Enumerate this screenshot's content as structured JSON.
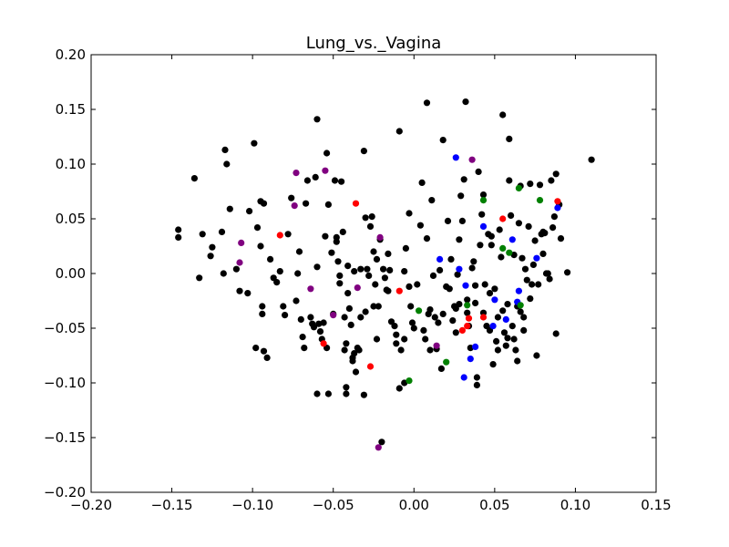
{
  "chart_data": {
    "type": "scatter",
    "title": "Lung_vs._Vagina",
    "xlabel": "",
    "ylabel": "",
    "xlim": [
      -0.2,
      0.15
    ],
    "ylim": [
      -0.2,
      0.2
    ],
    "xticks": [
      -0.2,
      -0.15,
      -0.1,
      -0.05,
      0.0,
      0.05,
      0.1,
      0.15
    ],
    "xtick_labels": [
      "−0.20",
      "−0.15",
      "−0.10",
      "−0.05",
      "0.00",
      "0.05",
      "0.10",
      "0.15"
    ],
    "yticks": [
      -0.2,
      -0.15,
      -0.1,
      -0.05,
      0.0,
      0.05,
      0.1,
      0.15,
      0.2
    ],
    "ytick_labels": [
      "−0.20",
      "−0.15",
      "−0.10",
      "−0.05",
      "0.00",
      "0.05",
      "0.10",
      "0.15",
      "0.20"
    ],
    "grid": false,
    "legend": "none",
    "series": [
      {
        "color": "#000000",
        "points": [
          [
            -0.146,
            0.04
          ],
          [
            -0.146,
            0.033
          ],
          [
            -0.136,
            0.087
          ],
          [
            -0.133,
            -0.004
          ],
          [
            -0.131,
            0.036
          ],
          [
            -0.126,
            0.016
          ],
          [
            -0.125,
            0.024
          ],
          [
            -0.119,
            0.038
          ],
          [
            -0.118,
            0.0
          ],
          [
            -0.117,
            0.113
          ],
          [
            -0.116,
            0.1
          ],
          [
            -0.114,
            0.059
          ],
          [
            -0.11,
            0.004
          ],
          [
            -0.108,
            -0.016
          ],
          [
            -0.103,
            -0.018
          ],
          [
            -0.102,
            0.057
          ],
          [
            -0.099,
            0.119
          ],
          [
            -0.098,
            -0.068
          ],
          [
            -0.097,
            0.042
          ],
          [
            -0.095,
            0.066
          ],
          [
            -0.095,
            0.025
          ],
          [
            -0.094,
            -0.037
          ],
          [
            -0.094,
            -0.03
          ],
          [
            -0.093,
            0.064
          ],
          [
            -0.093,
            -0.071
          ],
          [
            -0.091,
            -0.077
          ],
          [
            -0.089,
            0.013
          ],
          [
            -0.087,
            -0.004
          ],
          [
            -0.085,
            -0.008
          ],
          [
            -0.083,
            0.002
          ],
          [
            -0.081,
            -0.03
          ],
          [
            -0.08,
            -0.038
          ],
          [
            -0.078,
            0.036
          ],
          [
            -0.076,
            0.069
          ],
          [
            -0.073,
            -0.025
          ],
          [
            -0.072,
            0.0
          ],
          [
            -0.071,
            0.02
          ],
          [
            -0.07,
            -0.042
          ],
          [
            -0.069,
            -0.058
          ],
          [
            -0.068,
            -0.068
          ],
          [
            -0.067,
            0.064
          ],
          [
            -0.066,
            0.085
          ],
          [
            -0.064,
            -0.04
          ],
          [
            -0.063,
            -0.046
          ],
          [
            -0.062,
            -0.049
          ],
          [
            -0.061,
            0.088
          ],
          [
            -0.06,
            0.141
          ],
          [
            -0.06,
            0.006
          ],
          [
            -0.06,
            -0.11
          ],
          [
            -0.059,
            -0.046
          ],
          [
            -0.058,
            -0.053
          ],
          [
            -0.057,
            -0.06
          ],
          [
            -0.056,
            -0.045
          ],
          [
            -0.055,
            0.034
          ],
          [
            -0.054,
            0.11
          ],
          [
            -0.054,
            -0.068
          ],
          [
            -0.053,
            0.063
          ],
          [
            -0.053,
            -0.11
          ],
          [
            -0.051,
            0.019
          ],
          [
            -0.05,
            -0.037
          ],
          [
            -0.049,
            0.085
          ],
          [
            -0.048,
            0.033
          ],
          [
            -0.048,
            0.029
          ],
          [
            -0.047,
            0.011
          ],
          [
            -0.046,
            -0.002
          ],
          [
            -0.046,
            -0.009
          ],
          [
            -0.045,
            0.084
          ],
          [
            -0.044,
            0.038
          ],
          [
            -0.043,
            -0.04
          ],
          [
            -0.043,
            -0.07
          ],
          [
            -0.042,
            -0.064
          ],
          [
            -0.042,
            -0.104
          ],
          [
            -0.042,
            -0.11
          ],
          [
            -0.041,
            0.007
          ],
          [
            -0.041,
            -0.018
          ],
          [
            -0.04,
            -0.032
          ],
          [
            -0.039,
            -0.047
          ],
          [
            -0.038,
            -0.077
          ],
          [
            -0.038,
            -0.08
          ],
          [
            -0.037,
            0.002
          ],
          [
            -0.037,
            -0.073
          ],
          [
            -0.036,
            -0.09
          ],
          [
            -0.035,
            -0.068
          ],
          [
            -0.034,
            -0.07
          ],
          [
            -0.033,
            -0.04
          ],
          [
            -0.033,
            0.004
          ],
          [
            -0.031,
            -0.111
          ],
          [
            -0.031,
            0.112
          ],
          [
            -0.03,
            0.051
          ],
          [
            -0.03,
            -0.035
          ],
          [
            -0.029,
            0.004
          ],
          [
            -0.028,
            -0.002
          ],
          [
            -0.027,
            0.043
          ],
          [
            -0.026,
            0.052
          ],
          [
            -0.025,
            -0.03
          ],
          [
            -0.025,
            0.02
          ],
          [
            -0.024,
            -0.01
          ],
          [
            -0.023,
            0.013
          ],
          [
            -0.023,
            -0.06
          ],
          [
            -0.022,
            -0.03
          ],
          [
            -0.021,
            0.031
          ],
          [
            -0.02,
            -0.154
          ],
          [
            -0.019,
            0.004
          ],
          [
            -0.018,
            -0.004
          ],
          [
            -0.017,
            -0.015
          ],
          [
            -0.016,
            -0.016
          ],
          [
            -0.016,
            0.018
          ],
          [
            -0.015,
            0.003
          ],
          [
            -0.014,
            -0.044
          ],
          [
            -0.012,
            -0.048
          ],
          [
            -0.011,
            -0.056
          ],
          [
            -0.011,
            -0.064
          ],
          [
            -0.009,
            0.13
          ],
          [
            -0.009,
            -0.105
          ],
          [
            -0.008,
            -0.07
          ],
          [
            -0.006,
            -0.06
          ],
          [
            -0.006,
            -0.1
          ],
          [
            -0.006,
            0.002
          ],
          [
            -0.005,
            0.023
          ],
          [
            -0.003,
            -0.012
          ],
          [
            -0.003,
            0.055
          ],
          [
            -0.002,
            -0.03
          ],
          [
            -0.001,
            -0.045
          ],
          [
            0.0,
            -0.05
          ],
          [
            0.002,
            -0.01
          ],
          [
            0.004,
            0.044
          ],
          [
            0.005,
            0.083
          ],
          [
            0.006,
            -0.052
          ],
          [
            0.007,
            -0.06
          ],
          [
            0.008,
            0.156
          ],
          [
            0.008,
            0.032
          ],
          [
            0.009,
            -0.037
          ],
          [
            0.01,
            -0.07
          ],
          [
            0.011,
            0.067
          ],
          [
            0.012,
            -0.002
          ],
          [
            0.013,
            -0.04
          ],
          [
            0.014,
            -0.069
          ],
          [
            0.016,
            0.003
          ],
          [
            0.017,
            -0.087
          ],
          [
            0.018,
            0.122
          ],
          [
            0.018,
            -0.037
          ],
          [
            0.02,
            -0.012
          ],
          [
            0.021,
            0.048
          ],
          [
            0.022,
            -0.014
          ],
          [
            0.023,
            0.013
          ],
          [
            0.024,
            -0.043
          ],
          [
            0.025,
            -0.03
          ],
          [
            0.026,
            -0.054
          ],
          [
            0.027,
            -0.001
          ],
          [
            0.028,
            0.031
          ],
          [
            0.028,
            -0.028
          ],
          [
            0.029,
            0.071
          ],
          [
            0.03,
            0.048
          ],
          [
            0.031,
            0.086
          ],
          [
            0.032,
            0.157
          ],
          [
            0.033,
            -0.024
          ],
          [
            0.033,
            -0.036
          ],
          [
            0.034,
            -0.048
          ],
          [
            0.035,
            -0.068
          ],
          [
            0.036,
            0.005
          ],
          [
            0.037,
            0.011
          ],
          [
            0.038,
            -0.011
          ],
          [
            0.038,
            -0.027
          ],
          [
            0.039,
            -0.095
          ],
          [
            0.039,
            -0.102
          ],
          [
            0.04,
            0.093
          ],
          [
            0.041,
            0.026
          ],
          [
            0.042,
            0.054
          ],
          [
            0.043,
            0.072
          ],
          [
            0.043,
            -0.036
          ],
          [
            0.044,
            -0.01
          ],
          [
            0.045,
            -0.048
          ],
          [
            0.046,
            0.036
          ],
          [
            0.047,
            -0.052
          ],
          [
            0.048,
            0.026
          ],
          [
            0.048,
            0.034
          ],
          [
            0.049,
            -0.083
          ],
          [
            0.05,
            -0.014
          ],
          [
            0.051,
            -0.062
          ],
          [
            0.052,
            -0.07
          ],
          [
            0.053,
            0.04
          ],
          [
            0.054,
            0.015
          ],
          [
            0.055,
            0.145
          ],
          [
            0.055,
            -0.034
          ],
          [
            0.056,
            -0.054
          ],
          [
            0.057,
            -0.066
          ],
          [
            0.058,
            -0.059
          ],
          [
            0.059,
            0.085
          ],
          [
            0.059,
            0.123
          ],
          [
            0.06,
            0.053
          ],
          [
            0.061,
            -0.048
          ],
          [
            0.062,
            0.017
          ],
          [
            0.062,
            -0.06
          ],
          [
            0.063,
            -0.07
          ],
          [
            0.064,
            -0.08
          ],
          [
            0.065,
            0.046
          ],
          [
            0.066,
            -0.035
          ],
          [
            0.066,
            0.08
          ],
          [
            0.067,
            0.014
          ],
          [
            0.068,
            -0.04
          ],
          [
            0.069,
            0.004
          ],
          [
            0.07,
            -0.006
          ],
          [
            0.071,
            0.043
          ],
          [
            0.072,
            0.082
          ],
          [
            0.073,
            -0.01
          ],
          [
            0.074,
            0.008
          ],
          [
            0.075,
            0.03
          ],
          [
            0.076,
            -0.075
          ],
          [
            0.077,
            -0.01
          ],
          [
            0.078,
            0.081
          ],
          [
            0.079,
            0.036
          ],
          [
            0.08,
            0.038
          ],
          [
            0.08,
            0.018
          ],
          [
            0.081,
            0.037
          ],
          [
            0.082,
            0.0
          ],
          [
            0.083,
            0.0
          ],
          [
            0.084,
            -0.005
          ],
          [
            0.085,
            0.085
          ],
          [
            0.086,
            0.042
          ],
          [
            0.087,
            0.052
          ],
          [
            0.088,
            0.091
          ],
          [
            0.088,
            -0.055
          ],
          [
            0.09,
            0.063
          ],
          [
            0.091,
            0.032
          ],
          [
            0.095,
            0.001
          ],
          [
            0.11,
            0.104
          ],
          [
            0.01,
            -0.033
          ],
          [
            0.015,
            -0.045
          ],
          [
            0.026,
            -0.032
          ],
          [
            0.047,
            -0.018
          ],
          [
            0.052,
            -0.04
          ],
          [
            0.058,
            -0.028
          ],
          [
            0.064,
            -0.03
          ],
          [
            0.068,
            -0.052
          ],
          [
            0.072,
            -0.023
          ]
        ]
      },
      {
        "color": "#800080",
        "points": [
          [
            -0.108,
            0.01
          ],
          [
            -0.107,
            0.028
          ],
          [
            -0.073,
            0.092
          ],
          [
            -0.074,
            0.062
          ],
          [
            -0.064,
            -0.014
          ],
          [
            -0.055,
            0.094
          ],
          [
            -0.05,
            -0.038
          ],
          [
            -0.035,
            -0.013
          ],
          [
            -0.021,
            0.033
          ],
          [
            -0.022,
            -0.159
          ],
          [
            0.014,
            -0.066
          ],
          [
            0.036,
            0.104
          ]
        ]
      },
      {
        "color": "#ff0000",
        "points": [
          [
            -0.083,
            0.035
          ],
          [
            -0.056,
            -0.064
          ],
          [
            -0.036,
            0.064
          ],
          [
            -0.027,
            -0.085
          ],
          [
            -0.009,
            -0.016
          ],
          [
            0.03,
            -0.052
          ],
          [
            0.033,
            -0.048
          ],
          [
            0.034,
            -0.041
          ],
          [
            0.043,
            -0.04
          ],
          [
            0.055,
            0.05
          ],
          [
            0.089,
            0.066
          ]
        ]
      },
      {
        "color": "#0000ff",
        "points": [
          [
            0.016,
            0.013
          ],
          [
            0.026,
            0.106
          ],
          [
            0.028,
            0.004
          ],
          [
            0.031,
            -0.095
          ],
          [
            0.032,
            -0.011
          ],
          [
            0.035,
            -0.078
          ],
          [
            0.038,
            -0.067
          ],
          [
            0.043,
            0.043
          ],
          [
            0.049,
            -0.048
          ],
          [
            0.05,
            -0.024
          ],
          [
            0.057,
            -0.042
          ],
          [
            0.061,
            0.031
          ],
          [
            0.064,
            -0.026
          ],
          [
            0.065,
            -0.016
          ],
          [
            0.076,
            0.014
          ],
          [
            0.089,
            0.06
          ]
        ]
      },
      {
        "color": "#008000",
        "points": [
          [
            -0.003,
            -0.098
          ],
          [
            0.003,
            -0.034
          ],
          [
            0.02,
            -0.081
          ],
          [
            0.033,
            -0.029
          ],
          [
            0.043,
            0.067
          ],
          [
            0.055,
            0.023
          ],
          [
            0.059,
            0.019
          ],
          [
            0.065,
            0.078
          ],
          [
            0.066,
            -0.029
          ],
          [
            0.078,
            0.067
          ]
        ]
      }
    ]
  }
}
